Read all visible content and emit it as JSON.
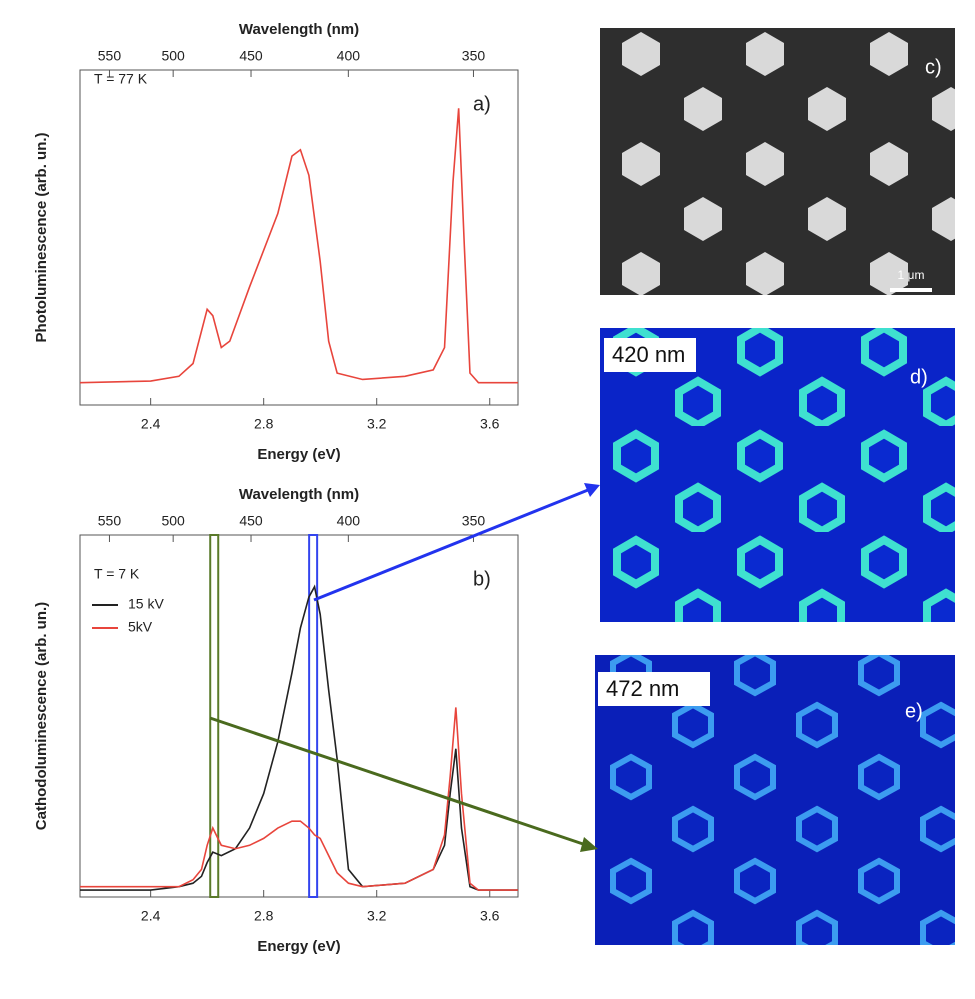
{
  "chart_data": [
    {
      "type": "line",
      "panel": "a)",
      "annotation": "T = 77 K",
      "x_label": "Energy (eV)",
      "x2_label": "Wavelength (nm)",
      "y_label": "Photoluminescence (arb. un.)",
      "xlim": [
        2.15,
        3.7
      ],
      "xticks": [
        2.4,
        2.8,
        3.2,
        3.6
      ],
      "x2ticks": [
        550,
        500,
        450,
        400,
        350
      ],
      "ylim": [
        0,
        1.05
      ],
      "x": [
        2.15,
        2.4,
        2.5,
        2.55,
        2.6,
        2.62,
        2.65,
        2.68,
        2.75,
        2.85,
        2.9,
        2.93,
        2.96,
        3.0,
        3.03,
        3.06,
        3.15,
        3.3,
        3.4,
        3.44,
        3.47,
        3.49,
        3.51,
        3.53,
        3.56,
        3.7
      ],
      "series": [
        {
          "color": "#e8453c",
          "values": [
            0.07,
            0.075,
            0.09,
            0.13,
            0.3,
            0.28,
            0.18,
            0.2,
            0.37,
            0.6,
            0.78,
            0.8,
            0.72,
            0.45,
            0.2,
            0.1,
            0.08,
            0.09,
            0.11,
            0.18,
            0.7,
            0.93,
            0.5,
            0.1,
            0.07,
            0.07
          ]
        }
      ]
    },
    {
      "type": "line",
      "panel": "b)",
      "annotation": "T = 7 K",
      "x_label": "Energy (eV)",
      "x2_label": "Wavelength (nm)",
      "y_label": "Cathodoluminescence (arb. un.)",
      "xlim": [
        2.15,
        3.7
      ],
      "xticks": [
        2.4,
        2.8,
        3.2,
        3.6
      ],
      "x2ticks": [
        550,
        500,
        450,
        400,
        350
      ],
      "ylim": [
        0,
        1.05
      ],
      "vlines": [
        {
          "x": 2.625,
          "color": "#5a7a2a"
        },
        {
          "x": 2.975,
          "color": "#3344ee"
        }
      ],
      "x": [
        2.15,
        2.4,
        2.5,
        2.55,
        2.58,
        2.6,
        2.62,
        2.65,
        2.7,
        2.75,
        2.8,
        2.85,
        2.9,
        2.93,
        2.96,
        2.98,
        3.0,
        3.03,
        3.06,
        3.1,
        3.15,
        3.3,
        3.4,
        3.44,
        3.46,
        3.48,
        3.5,
        3.53,
        3.56,
        3.7
      ],
      "series": [
        {
          "name": "15 kV",
          "color": "#222222",
          "values": [
            0.02,
            0.02,
            0.03,
            0.04,
            0.06,
            0.1,
            0.13,
            0.12,
            0.14,
            0.2,
            0.3,
            0.45,
            0.65,
            0.78,
            0.87,
            0.9,
            0.82,
            0.6,
            0.4,
            0.08,
            0.03,
            0.04,
            0.08,
            0.15,
            0.3,
            0.43,
            0.2,
            0.03,
            0.02,
            0.02
          ]
        },
        {
          "name": "5kV",
          "color": "#e8453c",
          "values": [
            0.03,
            0.03,
            0.03,
            0.05,
            0.08,
            0.15,
            0.2,
            0.15,
            0.14,
            0.15,
            0.17,
            0.2,
            0.22,
            0.22,
            0.2,
            0.18,
            0.17,
            0.12,
            0.07,
            0.04,
            0.03,
            0.04,
            0.08,
            0.18,
            0.35,
            0.55,
            0.3,
            0.04,
            0.02,
            0.02
          ]
        }
      ]
    }
  ],
  "panels": {
    "c": {
      "label": "c)",
      "scale": "1 μm"
    },
    "d": {
      "label": "d)",
      "tag": "420 nm"
    },
    "e": {
      "label": "e)",
      "tag": "472 nm"
    }
  }
}
